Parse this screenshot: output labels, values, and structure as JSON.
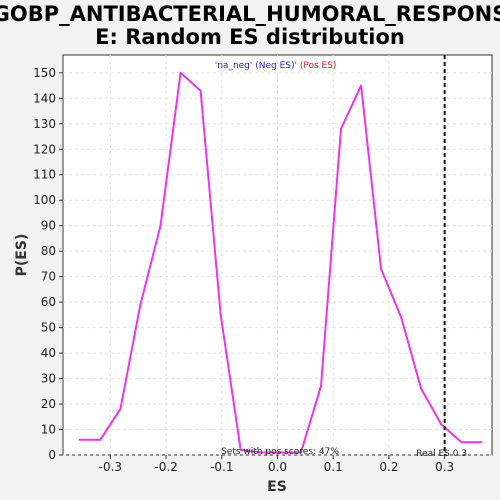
{
  "chart_data": {
    "type": "line",
    "title_line1": "GOBP_ANTIBACTERIAL_HUMORAL_RESPONS",
    "title_line2": "E: Random ES distribution",
    "xlabel": "ES",
    "ylabel": "P(ES)",
    "xlim": [
      -0.385,
      0.385
    ],
    "ylim": [
      0,
      157
    ],
    "xticks": [
      -0.3,
      -0.2,
      -0.1,
      0.0,
      0.1,
      0.2,
      0.3
    ],
    "xtick_labels": [
      "-0.3",
      "-0.2",
      "-0.1",
      "0.0",
      "0.1",
      "0.2",
      "0.3"
    ],
    "yticks": [
      0,
      10,
      20,
      30,
      40,
      50,
      60,
      70,
      80,
      90,
      100,
      110,
      120,
      130,
      140,
      150
    ],
    "grid": true,
    "legend": {
      "neg_label": "'na_neg' (Neg ES)",
      "pos_label": "' (Pos ES)",
      "neg_color": "#1f1fd0",
      "pos_color": "#d02020"
    },
    "line_color": "#ee33ee",
    "series": [
      {
        "x": [
          -0.355,
          -0.318,
          -0.282,
          -0.246,
          -0.21,
          -0.174,
          -0.138,
          -0.102,
          -0.066,
          -0.03,
          0.006,
          0.042,
          0.078,
          0.114,
          0.15,
          0.186,
          0.222,
          0.258,
          0.294,
          0.33,
          0.366
        ],
        "y": [
          6,
          6,
          18,
          59,
          90,
          150,
          143,
          55,
          2,
          1,
          1,
          1,
          27,
          128,
          145,
          73,
          54,
          26,
          12,
          5,
          5
        ]
      }
    ],
    "real_es": {
      "value": 0.3,
      "label": "Real ES 0.3"
    },
    "annotation": "Sets with pos scores: 47%"
  }
}
